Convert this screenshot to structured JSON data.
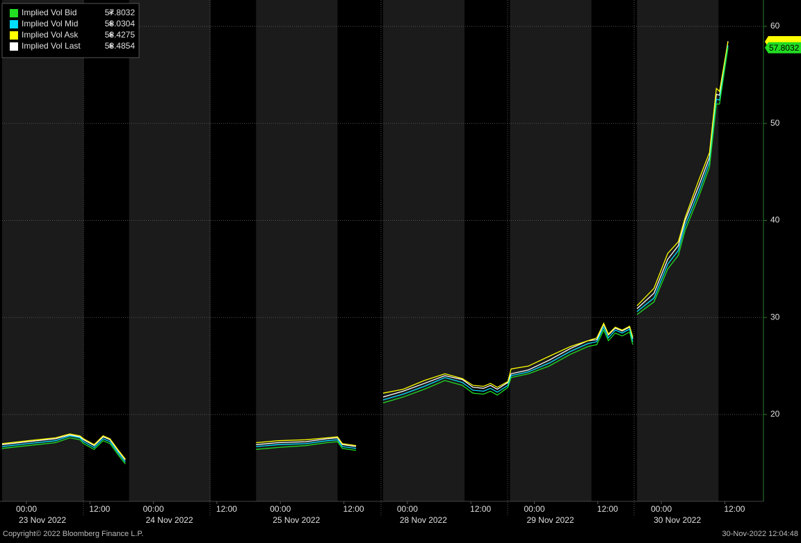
{
  "chart_data": {
    "type": "line",
    "legend_marker": "∗",
    "x": [
      -4.6,
      0.3,
      5.5,
      8.2,
      10.1,
      10.8,
      12.8,
      14.5,
      15.8,
      17.4,
      18.7,
      30,
      43.4,
      47.6,
      52.8,
      56.8,
      58.8,
      59.7,
      62.3,
      65,
      67.4,
      71.2,
      75.2,
      79.1,
      82.4,
      84.4,
      86.4,
      87.7,
      89.0,
      91.0,
      91.6,
      94.9,
      98.8,
      102.8,
      106.1,
      107.8,
      109.1,
      110.0,
      111.3,
      112.6,
      114.0,
      114.6,
      115.0,
      115.4,
      118.6,
      121.2,
      123.2,
      124.5,
      127.1,
      129.1,
      130.4,
      131.0,
      132.6
    ],
    "series": [
      {
        "name": "Implied Vol Bid",
        "color": "#22dd22",
        "last_value": 57.8032,
        "values": [
          16.5,
          16.8,
          17.1,
          17.6,
          17.4,
          17.0,
          16.4,
          17.3,
          17.0,
          15.8,
          14.9,
          null,
          16.4,
          16.6,
          16.8,
          17.1,
          17.2,
          16.5,
          16.3,
          null,
          21.2,
          21.8,
          22.6,
          23.5,
          23.0,
          22.2,
          22.1,
          22.4,
          22.0,
          22.8,
          23.8,
          24.2,
          25.0,
          26.2,
          27.0,
          27.2,
          28.7,
          27.6,
          28.4,
          28.1,
          28.5,
          27.2,
          null,
          30.3,
          31.6,
          35.0,
          36.4,
          39.0,
          42.5,
          45.5,
          52.0,
          52.0,
          57.8032
        ]
      },
      {
        "name": "Implied Vol Mid",
        "color": "#00e0ff",
        "last_value": 58.0304,
        "values": [
          16.7,
          17.0,
          17.3,
          17.8,
          17.6,
          17.2,
          16.6,
          17.5,
          17.2,
          16.0,
          15.1,
          null,
          16.7,
          16.9,
          17.0,
          17.3,
          17.4,
          16.7,
          16.5,
          null,
          21.5,
          22.1,
          22.9,
          23.8,
          23.3,
          22.5,
          22.4,
          22.7,
          22.3,
          23.0,
          24.0,
          24.4,
          25.3,
          26.5,
          27.3,
          27.5,
          29.0,
          27.9,
          28.7,
          28.4,
          28.8,
          27.5,
          null,
          30.6,
          32.0,
          35.5,
          36.9,
          39.5,
          43.0,
          46.0,
          52.5,
          52.4,
          58.0304
        ]
      },
      {
        "name": "Implied Vol Ask",
        "color": "#ffff00",
        "last_value": 58.4275,
        "values": [
          17.0,
          17.3,
          17.6,
          18.0,
          17.8,
          17.5,
          16.9,
          17.8,
          17.5,
          16.3,
          15.4,
          null,
          17.1,
          17.3,
          17.4,
          17.6,
          17.7,
          17.0,
          16.8,
          null,
          22.2,
          22.6,
          23.5,
          24.2,
          23.7,
          23.0,
          22.9,
          23.2,
          22.8,
          23.4,
          24.7,
          25.0,
          26.0,
          27.0,
          27.6,
          27.9,
          29.4,
          28.3,
          29.0,
          28.7,
          29.1,
          28.0,
          null,
          31.2,
          33.0,
          36.6,
          37.8,
          40.3,
          44.2,
          47.0,
          53.6,
          53.3,
          58.4275
        ]
      },
      {
        "name": "Implied Vol Last",
        "color": "#ffffff",
        "last_value": 58.4854,
        "values": [
          16.9,
          17.2,
          17.5,
          17.9,
          17.7,
          17.4,
          16.8,
          17.7,
          17.4,
          16.2,
          15.3,
          null,
          16.9,
          17.1,
          17.2,
          17.5,
          17.6,
          16.9,
          16.7,
          null,
          21.8,
          22.4,
          23.2,
          24.0,
          23.6,
          22.8,
          22.7,
          23.0,
          22.6,
          23.3,
          24.2,
          24.6,
          25.6,
          26.8,
          27.6,
          27.7,
          29.3,
          28.2,
          28.9,
          28.6,
          29.0,
          27.8,
          null,
          30.9,
          32.5,
          36.0,
          37.4,
          40.0,
          43.6,
          46.5,
          53.0,
          52.9,
          58.4854
        ]
      }
    ],
    "xlim": [
      -4.6,
      139.3
    ],
    "ylim": [
      11.05,
      62.72
    ],
    "yticks": [
      20,
      30,
      40,
      50,
      60
    ],
    "xticks": [
      {
        "value": 0,
        "label": "00:00"
      },
      {
        "value": 12,
        "label": "12:00"
      },
      {
        "value": 24,
        "label": "00:00"
      },
      {
        "value": 36,
        "label": "12:00"
      },
      {
        "value": 48,
        "label": "00:00"
      },
      {
        "value": 60,
        "label": "12:00"
      },
      {
        "value": 72,
        "label": "00:00"
      },
      {
        "value": 84,
        "label": "12:00"
      },
      {
        "value": 96,
        "label": "00:00"
      },
      {
        "value": 108,
        "label": "12:00"
      },
      {
        "value": 120,
        "label": "00:00"
      },
      {
        "value": 132,
        "label": "12:00"
      }
    ],
    "date_ticks": [
      {
        "value": 0,
        "label": "23 Nov 2022"
      },
      {
        "value": 24,
        "label": "24 Nov 2022"
      },
      {
        "value": 48,
        "label": "25 Nov 2022"
      },
      {
        "value": 72,
        "label": "28 Nov 2022"
      },
      {
        "value": 96,
        "label": "29 Nov 2022"
      },
      {
        "value": 120,
        "label": "30 Nov 2022"
      }
    ],
    "grid": true,
    "legend": "upper left"
  },
  "footer": {
    "copyright": "Copyright© 2022 Bloomberg Finance L.P.",
    "timestamp": "30-Nov-2022 12:04:48"
  }
}
